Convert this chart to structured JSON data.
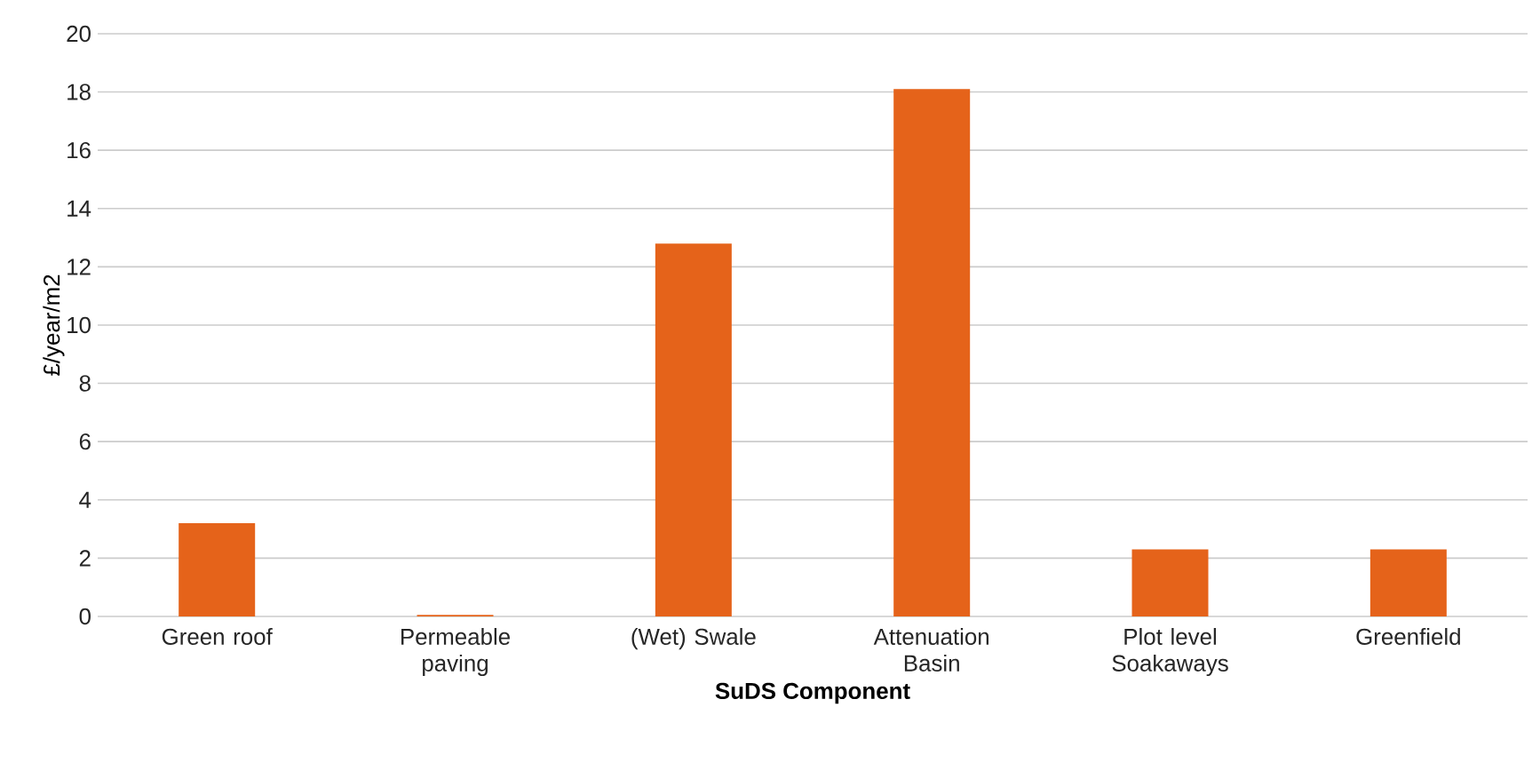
{
  "chart_data": {
    "type": "bar",
    "xlabel": "SuDS Component",
    "ylabel": "£/year/m2",
    "categories": [
      "Green roof",
      "Permeable paving",
      "(Wet) Swale",
      "Attenuation Basin",
      "Plot level Soakaways",
      "Greenfield"
    ],
    "values": [
      3.2,
      0.05,
      12.8,
      18.1,
      2.3,
      2.3
    ],
    "color": "#e5631a",
    "ylim": [
      0,
      20
    ],
    "yticks": [
      0,
      2,
      4,
      6,
      8,
      10,
      12,
      14,
      16,
      18,
      20
    ],
    "grid": "y"
  }
}
